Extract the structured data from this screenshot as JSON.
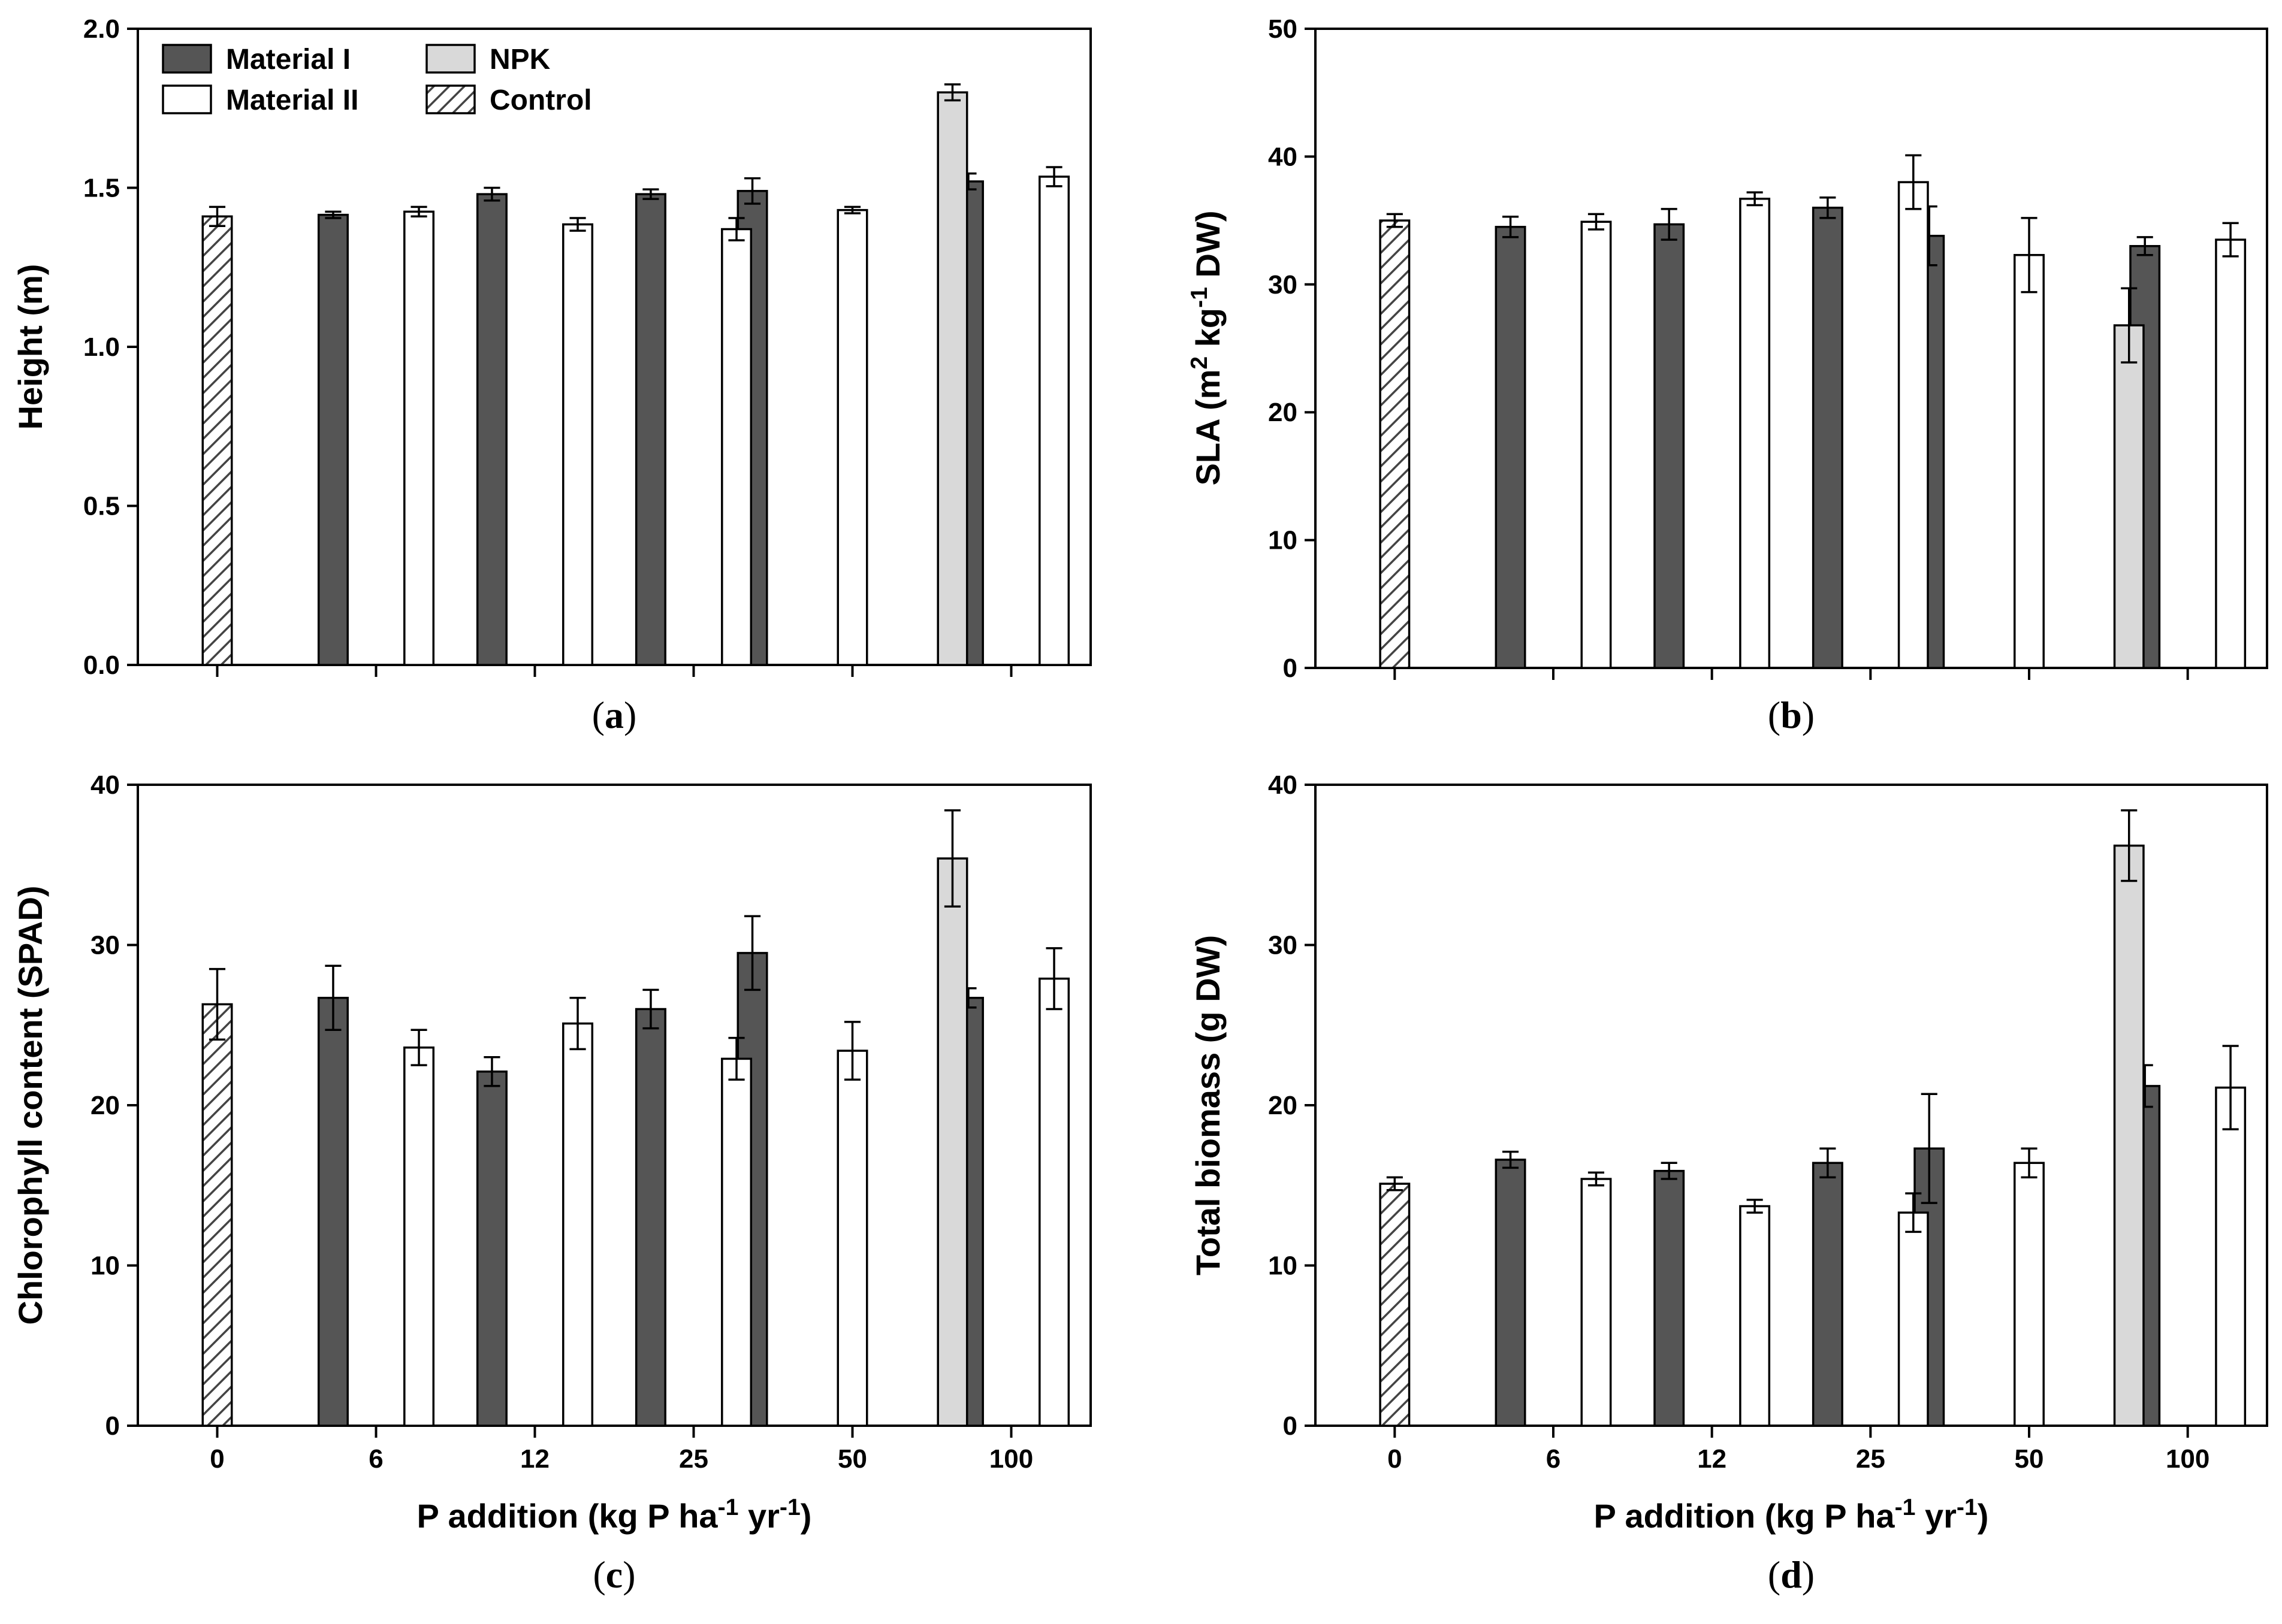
{
  "chart_data": [
    {
      "type": "bar",
      "panel_label": "a",
      "ylabel": "Height (m)",
      "xlabel": "",
      "ylim": [
        0,
        2.0
      ],
      "yticks": [
        "0.0",
        "0.5",
        "1.0",
        "1.5",
        "2.0"
      ],
      "ytick_values": [
        0,
        0.5,
        1.0,
        1.5,
        2.0
      ],
      "show_x_tick_labels": false,
      "categories": [
        "0",
        "6",
        "12",
        "25",
        "50",
        "100"
      ],
      "series": [
        {
          "name": "Control",
          "values": [
            1.41,
            null,
            null,
            null,
            null,
            null
          ],
          "errors": [
            0.03,
            null,
            null,
            null,
            null,
            null
          ]
        },
        {
          "name": "Material I",
          "values": [
            null,
            1.415,
            1.48,
            1.48,
            1.49,
            1.52
          ],
          "errors": [
            null,
            0.01,
            0.02,
            0.015,
            0.04,
            0.025
          ]
        },
        {
          "name": "Material II",
          "values": [
            null,
            1.425,
            1.385,
            1.37,
            1.43,
            1.535
          ],
          "errors": [
            null,
            0.015,
            0.02,
            0.035,
            0.01,
            0.03
          ]
        },
        {
          "name": "NPK",
          "values": [
            null,
            null,
            null,
            null,
            1.8,
            null
          ],
          "errors": [
            null,
            null,
            null,
            null,
            0.025,
            null
          ]
        }
      ]
    },
    {
      "type": "bar",
      "panel_label": "b",
      "ylabel": "SLA (m² kg⁻¹ DW)",
      "xlabel": "",
      "ylim": [
        0,
        50
      ],
      "yticks": [
        "0",
        "10",
        "20",
        "30",
        "40",
        "50"
      ],
      "ytick_values": [
        0,
        10,
        20,
        30,
        40,
        50
      ],
      "show_x_tick_labels": false,
      "categories": [
        "0",
        "6",
        "12",
        "25",
        "50",
        "100"
      ],
      "series": [
        {
          "name": "Control",
          "values": [
            35.0,
            null,
            null,
            null,
            null,
            null
          ],
          "errors": [
            0.5,
            null,
            null,
            null,
            null,
            null
          ]
        },
        {
          "name": "Material I",
          "values": [
            null,
            34.5,
            34.7,
            36.0,
            33.8,
            33.0
          ],
          "errors": [
            null,
            0.8,
            1.2,
            0.8,
            2.3,
            0.7
          ]
        },
        {
          "name": "Material II",
          "values": [
            null,
            34.9,
            36.7,
            38.0,
            32.3,
            33.5
          ],
          "errors": [
            null,
            0.6,
            0.5,
            2.1,
            2.9,
            1.3
          ]
        },
        {
          "name": "NPK",
          "values": [
            null,
            null,
            null,
            null,
            26.8,
            null
          ],
          "errors": [
            null,
            null,
            null,
            null,
            2.9,
            null
          ]
        }
      ]
    },
    {
      "type": "bar",
      "panel_label": "c",
      "ylabel": "Chlorophyll content (SPAD)",
      "xlabel": "P addition (kg P ha⁻¹ yr⁻¹)",
      "ylim": [
        0,
        40
      ],
      "yticks": [
        "0",
        "10",
        "20",
        "30",
        "40"
      ],
      "ytick_values": [
        0,
        10,
        20,
        30,
        40
      ],
      "show_x_tick_labels": true,
      "categories": [
        "0",
        "6",
        "12",
        "25",
        "50",
        "100"
      ],
      "series": [
        {
          "name": "Control",
          "values": [
            26.3,
            null,
            null,
            null,
            null,
            null
          ],
          "errors": [
            2.2,
            null,
            null,
            null,
            null,
            null
          ]
        },
        {
          "name": "Material I",
          "values": [
            null,
            26.7,
            22.1,
            26.0,
            29.5,
            26.7
          ],
          "errors": [
            null,
            2.0,
            0.9,
            1.2,
            2.3,
            0.6
          ]
        },
        {
          "name": "Material II",
          "values": [
            null,
            23.6,
            25.1,
            22.9,
            23.4,
            27.9
          ],
          "errors": [
            null,
            1.1,
            1.6,
            1.3,
            1.8,
            1.9
          ]
        },
        {
          "name": "NPK",
          "values": [
            null,
            null,
            null,
            null,
            35.4,
            null
          ],
          "errors": [
            null,
            null,
            null,
            null,
            3.0,
            null
          ]
        }
      ]
    },
    {
      "type": "bar",
      "panel_label": "d",
      "ylabel": "Total biomass (g DW)",
      "xlabel": "P addition (kg P ha⁻¹ yr⁻¹)",
      "ylim": [
        0,
        40
      ],
      "yticks": [
        "0",
        "10",
        "20",
        "30",
        "40"
      ],
      "ytick_values": [
        0,
        10,
        20,
        30,
        40
      ],
      "show_x_tick_labels": true,
      "categories": [
        "0",
        "6",
        "12",
        "25",
        "50",
        "100"
      ],
      "series": [
        {
          "name": "Control",
          "values": [
            15.1,
            null,
            null,
            null,
            null,
            null
          ],
          "errors": [
            0.4,
            null,
            null,
            null,
            null,
            null
          ]
        },
        {
          "name": "Material I",
          "values": [
            null,
            16.6,
            15.9,
            16.4,
            17.3,
            21.2
          ],
          "errors": [
            null,
            0.5,
            0.5,
            0.9,
            3.4,
            1.3
          ]
        },
        {
          "name": "Material II",
          "values": [
            null,
            15.4,
            13.7,
            13.3,
            16.4,
            21.1
          ],
          "errors": [
            null,
            0.4,
            0.4,
            1.2,
            0.9,
            2.6
          ]
        },
        {
          "name": "NPK",
          "values": [
            null,
            null,
            null,
            null,
            36.2,
            null
          ],
          "errors": [
            null,
            null,
            null,
            null,
            2.2,
            null
          ]
        }
      ]
    }
  ],
  "legend": {
    "entries": [
      {
        "name": "Material I",
        "style": "dark"
      },
      {
        "name": "Material II",
        "style": "white"
      },
      {
        "name": "NPK",
        "style": "light"
      },
      {
        "name": "Control",
        "style": "hatch"
      }
    ]
  },
  "colors": {
    "material_i": "#555555",
    "material_ii": "#ffffff",
    "npk": "#d9d9d9",
    "control_hatch": "#444444",
    "stroke": "#000000"
  }
}
